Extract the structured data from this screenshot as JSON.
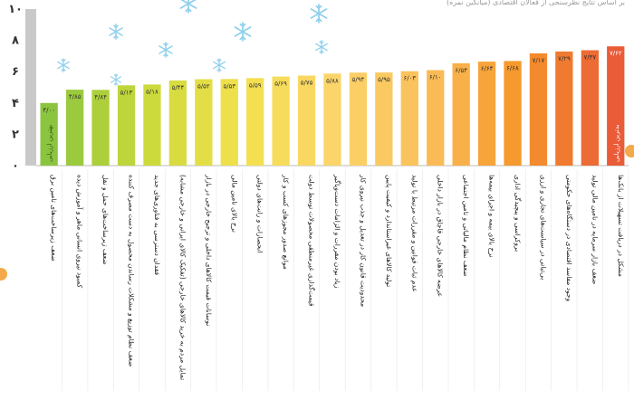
{
  "header_text": "بر اساس نتایج نظرسنجی از فعالان اقتصادی (میانگین نمره)",
  "chart_data": {
    "type": "bar",
    "orientation": "vertical",
    "ylim": [
      0,
      10
    ],
    "yticks": [
      "۰",
      "۲",
      "۴",
      "۶",
      "۸",
      "۱۰"
    ],
    "ytick_values": [
      0,
      2,
      4,
      6,
      8,
      10
    ],
    "grid": false,
    "colors_scale": [
      "#8bc43f",
      "#c9d93a",
      "#f2e14c",
      "#fbd56a",
      "#fbbf5a",
      "#f5952a",
      "#ea5b38"
    ],
    "values": [
      4.0,
      4.85,
      4.84,
      5.13,
      5.18,
      5.44,
      5.52,
      5.53,
      5.59,
      5.69,
      5.75,
      5.88,
      5.94,
      5.95,
      6.03,
      6.1,
      6.54,
      6.64,
      6.68,
      7.17,
      7.29,
      7.37,
      7.62
    ],
    "value_labels": [
      "۴/۰۰",
      "۴/۸۵",
      "۴/۸۴",
      "۵/۱۳",
      "۵/۱۸",
      "۵/۴۴",
      "۵/۵۲",
      "۵/۵۳",
      "۵/۵۹",
      "۵/۶۹",
      "۵/۷۵",
      "۵/۸۸",
      "۵/۹۴",
      "۵/۹۵",
      "۶/۰۳",
      "۶/۱۰",
      "۶/۵۴",
      "۶/۶۴",
      "۶/۶۸",
      "۷/۱۷",
      "۷/۲۹",
      "۷/۳۷",
      "۷/۶۲"
    ],
    "categories": [
      "ضعف زیرساخت‌های تامین برق",
      "کمبود نیروی انسانی ماهر و آموزش دیده",
      "ضعف زیرساخت‌های حمل و نقل",
      "ضعف نظام توزیع و مشکلات رساندن محصول به دست مصرف کننده",
      "فقدان دسترسی به فناوری‌های جدید",
      "تمایل مردم به خرید کالاهای خارجی (تفکیک کالای ایرانی و خارجی مشابه)",
      "نوسانات قیمت کالاهای داخلی و ترجیح خارجی در بازار",
      "نرخ بالای تامین مالی",
      "انحصارات و رانت‌های دولتی",
      "موانع صدور مجوزهای کسب و کار",
      "قیمت‌گذاری غیرمنطقی محصولات توسط دولت",
      "زیاد بودن مقررات و الزامات دست‌وپاگیر",
      "محدودیت قانون کار در تعدیل و جذب نیروی کار",
      "تولید کالاهای غیراستاندارد و کیفیت پایین",
      "عدم ثبات قوانین و مقررات مرتبط با تولید",
      "عرضه کالاهای خارجی قاچاق در بازار داخلی",
      "ضعف نظام مالیاتی و تامین اجتماعی",
      "نرخ بالای بیمه و اجرای بیمه‌ها",
      "بروکراسی و پیچیدگی اداری",
      "بی‌ثباتی در سیاست‌های تجاری و ارزی",
      "وجود مفاسد اقتصادی در دستگاه‌های حکومتی",
      "ضعف بازار سرمایه در تامین مالی تولید",
      "مشکل در دریافت تسهیلات از بانک‌ها"
    ],
    "annotations": [
      {
        "bar_index": 0,
        "text": "بهترین ارزیابی"
      },
      {
        "bar_index": 22,
        "text": "بدترین ارزیابی"
      }
    ],
    "xlabel": "",
    "ylabel": "",
    "title": ""
  }
}
